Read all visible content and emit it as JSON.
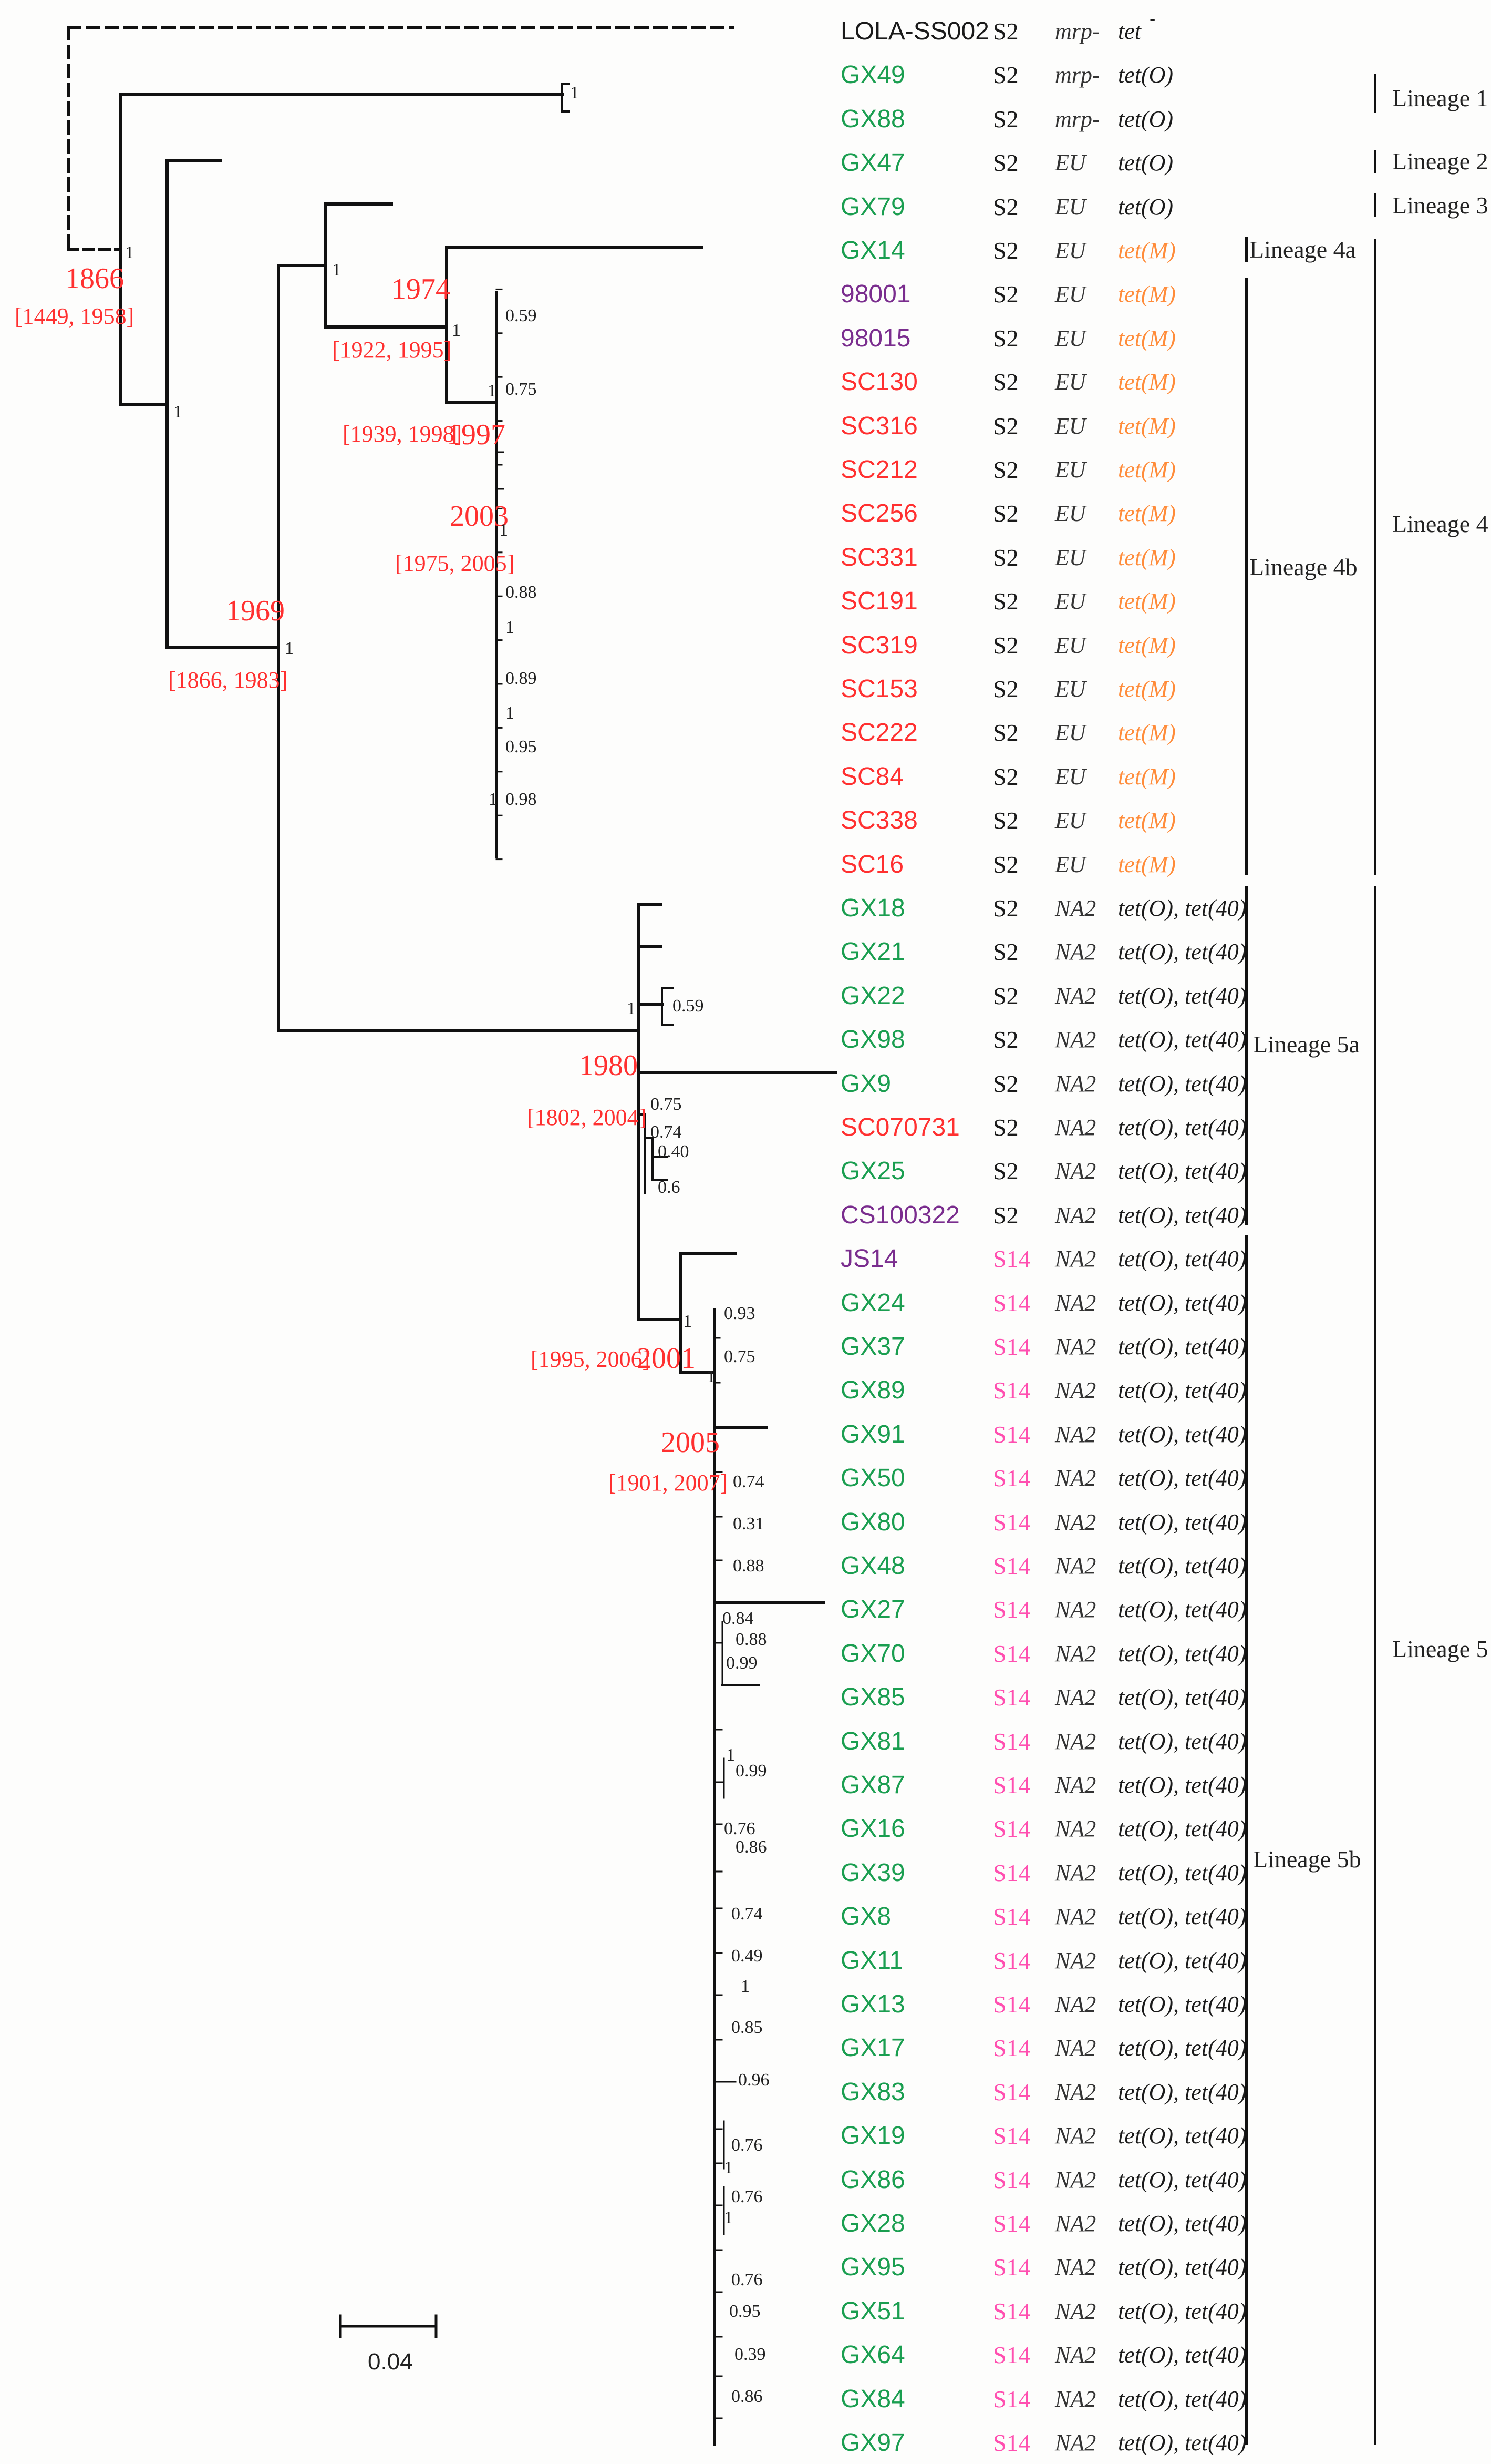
{
  "colors": {
    "green": "#1a9e50",
    "purple": "#7a2d8e",
    "red": "#ff3030",
    "black": "#1a1a1a",
    "pink": "#ff4fb0",
    "orange": "#ff8c3a"
  },
  "tips": [
    {
      "name": "LOLA-SS002",
      "color": "black",
      "st": "S2",
      "mrp": "mrp-",
      "tet": "tet"
    },
    {
      "name": "GX49",
      "color": "green",
      "st": "S2",
      "mrp": "mrp-",
      "tet": "tet(O)"
    },
    {
      "name": "GX88",
      "color": "green",
      "st": "S2",
      "mrp": "mrp-",
      "tet": "tet(O)"
    },
    {
      "name": "GX47",
      "color": "green",
      "st": "S2",
      "mrp": "EU",
      "tet": "tet(O)"
    },
    {
      "name": "GX79",
      "color": "green",
      "st": "S2",
      "mrp": "EU",
      "tet": "tet(O)"
    },
    {
      "name": "GX14",
      "color": "green",
      "st": "S2",
      "mrp": "EU",
      "tet": "tet(M)"
    },
    {
      "name": "98001",
      "color": "purple",
      "st": "S2",
      "mrp": "EU",
      "tet": "tet(M)"
    },
    {
      "name": "98015",
      "color": "purple",
      "st": "S2",
      "mrp": "EU",
      "tet": "tet(M)"
    },
    {
      "name": "SC130",
      "color": "red",
      "st": "S2",
      "mrp": "EU",
      "tet": "tet(M)"
    },
    {
      "name": "SC316",
      "color": "red",
      "st": "S2",
      "mrp": "EU",
      "tet": "tet(M)"
    },
    {
      "name": "SC212",
      "color": "red",
      "st": "S2",
      "mrp": "EU",
      "tet": "tet(M)"
    },
    {
      "name": "SC256",
      "color": "red",
      "st": "S2",
      "mrp": "EU",
      "tet": "tet(M)"
    },
    {
      "name": "SC331",
      "color": "red",
      "st": "S2",
      "mrp": "EU",
      "tet": "tet(M)"
    },
    {
      "name": "SC191",
      "color": "red",
      "st": "S2",
      "mrp": "EU",
      "tet": "tet(M)"
    },
    {
      "name": "SC319",
      "color": "red",
      "st": "S2",
      "mrp": "EU",
      "tet": "tet(M)"
    },
    {
      "name": "SC153",
      "color": "red",
      "st": "S2",
      "mrp": "EU",
      "tet": "tet(M)"
    },
    {
      "name": "SC222",
      "color": "red",
      "st": "S2",
      "mrp": "EU",
      "tet": "tet(M)"
    },
    {
      "name": "SC84",
      "color": "red",
      "st": "S2",
      "mrp": "EU",
      "tet": "tet(M)"
    },
    {
      "name": "SC338",
      "color": "red",
      "st": "S2",
      "mrp": "EU",
      "tet": "tet(M)"
    },
    {
      "name": "SC16",
      "color": "red",
      "st": "S2",
      "mrp": "EU",
      "tet": "tet(M)"
    },
    {
      "name": "GX18",
      "color": "green",
      "st": "S2",
      "mrp": "NA2",
      "tet": "tet(O), tet(40)"
    },
    {
      "name": "GX21",
      "color": "green",
      "st": "S2",
      "mrp": "NA2",
      "tet": "tet(O), tet(40)"
    },
    {
      "name": "GX22",
      "color": "green",
      "st": "S2",
      "mrp": "NA2",
      "tet": "tet(O), tet(40)"
    },
    {
      "name": "GX98",
      "color": "green",
      "st": "S2",
      "mrp": "NA2",
      "tet": "tet(O), tet(40)"
    },
    {
      "name": "GX9",
      "color": "green",
      "st": "S2",
      "mrp": "NA2",
      "tet": "tet(O), tet(40)"
    },
    {
      "name": "SC070731",
      "color": "red",
      "st": "S2",
      "mrp": "NA2",
      "tet": "tet(O), tet(40)"
    },
    {
      "name": "GX25",
      "color": "green",
      "st": "S2",
      "mrp": "NA2",
      "tet": "tet(O), tet(40)"
    },
    {
      "name": "CS100322",
      "color": "purple",
      "st": "S2",
      "mrp": "NA2",
      "tet": "tet(O), tet(40)"
    },
    {
      "name": "JS14",
      "color": "purple",
      "st": "S14",
      "mrp": "NA2",
      "tet": "tet(O), tet(40)"
    },
    {
      "name": "GX24",
      "color": "green",
      "st": "S14",
      "mrp": "NA2",
      "tet": "tet(O), tet(40)"
    },
    {
      "name": "GX37",
      "color": "green",
      "st": "S14",
      "mrp": "NA2",
      "tet": "tet(O), tet(40)"
    },
    {
      "name": "GX89",
      "color": "green",
      "st": "S14",
      "mrp": "NA2",
      "tet": "tet(O), tet(40)"
    },
    {
      "name": "GX91",
      "color": "green",
      "st": "S14",
      "mrp": "NA2",
      "tet": "tet(O), tet(40)"
    },
    {
      "name": "GX50",
      "color": "green",
      "st": "S14",
      "mrp": "NA2",
      "tet": "tet(O), tet(40)"
    },
    {
      "name": "GX80",
      "color": "green",
      "st": "S14",
      "mrp": "NA2",
      "tet": "tet(O), tet(40)"
    },
    {
      "name": "GX48",
      "color": "green",
      "st": "S14",
      "mrp": "NA2",
      "tet": "tet(O), tet(40)"
    },
    {
      "name": "GX27",
      "color": "green",
      "st": "S14",
      "mrp": "NA2",
      "tet": "tet(O), tet(40)"
    },
    {
      "name": "GX70",
      "color": "green",
      "st": "S14",
      "mrp": "NA2",
      "tet": "tet(O), tet(40)"
    },
    {
      "name": "GX85",
      "color": "green",
      "st": "S14",
      "mrp": "NA2",
      "tet": "tet(O), tet(40)"
    },
    {
      "name": "GX81",
      "color": "green",
      "st": "S14",
      "mrp": "NA2",
      "tet": "tet(O), tet(40)"
    },
    {
      "name": "GX87",
      "color": "green",
      "st": "S14",
      "mrp": "NA2",
      "tet": "tet(O), tet(40)"
    },
    {
      "name": "GX16",
      "color": "green",
      "st": "S14",
      "mrp": "NA2",
      "tet": "tet(O), tet(40)"
    },
    {
      "name": "GX39",
      "color": "green",
      "st": "S14",
      "mrp": "NA2",
      "tet": "tet(O), tet(40)"
    },
    {
      "name": "GX8",
      "color": "green",
      "st": "S14",
      "mrp": "NA2",
      "tet": "tet(O), tet(40)"
    },
    {
      "name": "GX11",
      "color": "green",
      "st": "S14",
      "mrp": "NA2",
      "tet": "tet(O), tet(40)"
    },
    {
      "name": "GX13",
      "color": "green",
      "st": "S14",
      "mrp": "NA2",
      "tet": "tet(O), tet(40)"
    },
    {
      "name": "GX17",
      "color": "green",
      "st": "S14",
      "mrp": "NA2",
      "tet": "tet(O), tet(40)"
    },
    {
      "name": "GX83",
      "color": "green",
      "st": "S14",
      "mrp": "NA2",
      "tet": "tet(O), tet(40)"
    },
    {
      "name": "GX19",
      "color": "green",
      "st": "S14",
      "mrp": "NA2",
      "tet": "tet(O), tet(40)"
    },
    {
      "name": "GX86",
      "color": "green",
      "st": "S14",
      "mrp": "NA2",
      "tet": "tet(O), tet(40)"
    },
    {
      "name": "GX28",
      "color": "green",
      "st": "S14",
      "mrp": "NA2",
      "tet": "tet(O), tet(40)"
    },
    {
      "name": "GX95",
      "color": "green",
      "st": "S14",
      "mrp": "NA2",
      "tet": "tet(O), tet(40)"
    },
    {
      "name": "GX51",
      "color": "green",
      "st": "S14",
      "mrp": "NA2",
      "tet": "tet(O), tet(40)"
    },
    {
      "name": "GX64",
      "color": "green",
      "st": "S14",
      "mrp": "NA2",
      "tet": "tet(O), tet(40)"
    },
    {
      "name": "GX84",
      "color": "green",
      "st": "S14",
      "mrp": "NA2",
      "tet": "tet(O), tet(40)"
    },
    {
      "name": "GX97",
      "color": "green",
      "st": "S14",
      "mrp": "NA2",
      "tet": "tet(O), tet(40)"
    }
  ],
  "lineages": {
    "l1": "Lineage  1",
    "l2": "Lineage  2",
    "l3": "Lineage  3",
    "l4a": "Lineage 4a",
    "l4b": "Lineage 4b",
    "l4": "Lineage  4",
    "l5a": "Lineage  5a",
    "l5b": "Lineage  5b",
    "l5": "Lineage  5"
  },
  "dates": {
    "d1866": "1866",
    "r1866": "[1449, 1958]",
    "d1969": "1969",
    "r1969": "[1866, 1983]",
    "d1974": "1974",
    "r1974": "[1922, 1995]",
    "d1997": "1997",
    "r1997": "[1939, 1998]",
    "d2003": "2003",
    "r2003": "[1975, 2005]",
    "d1980": "1980",
    "r1980": "[1802, 2004]",
    "d2001": "2001",
    "r2001": "[1995, 2006]",
    "d2005": "2005",
    "r2005": "[1901, 2007]"
  },
  "support": {
    "s_root": "1",
    "s_a": "1",
    "s_l1": "1",
    "s_b": "1",
    "s_c": "1",
    "s_d": "1",
    "s_e": "1",
    "s_f": "0.59",
    "s_g": "0.75",
    "s_h": "1",
    "s_i": "0.88",
    "s_j": "1",
    "s_k": "0.89",
    "s_l": "1",
    "s_m": "0.95",
    "s_n": "1",
    "s_o": "0.98",
    "s_p": "1",
    "s_q": "0.59",
    "s_r": "0.75",
    "s_s": "0.74",
    "s_t": "0.40",
    "s_u": "0.6",
    "s_v": "1",
    "s_w": "0.93",
    "s_x": "1",
    "s_y": "0.75",
    "s_z": "0.74",
    "s_aa": "0.31",
    "s_ab": "0.88",
    "s_ac": "0.84",
    "s_ad": "0.88",
    "s_ae": "0.99",
    "s_af": "1",
    "s_ag": "0.99",
    "s_ah": "0.76",
    "s_ai": "0.86",
    "s_aj": "0.74",
    "s_ak": "0.49",
    "s_al": "1",
    "s_am": "0.85",
    "s_an": "0.96",
    "s_ao": "0.76",
    "s_ap": "1",
    "s_aq": "0.76",
    "s_ar": "1",
    "s_as": "0.76",
    "s_at": "0.95",
    "s_au": "0.39",
    "s_av": "0.86"
  },
  "scale": {
    "label": "0.04"
  }
}
